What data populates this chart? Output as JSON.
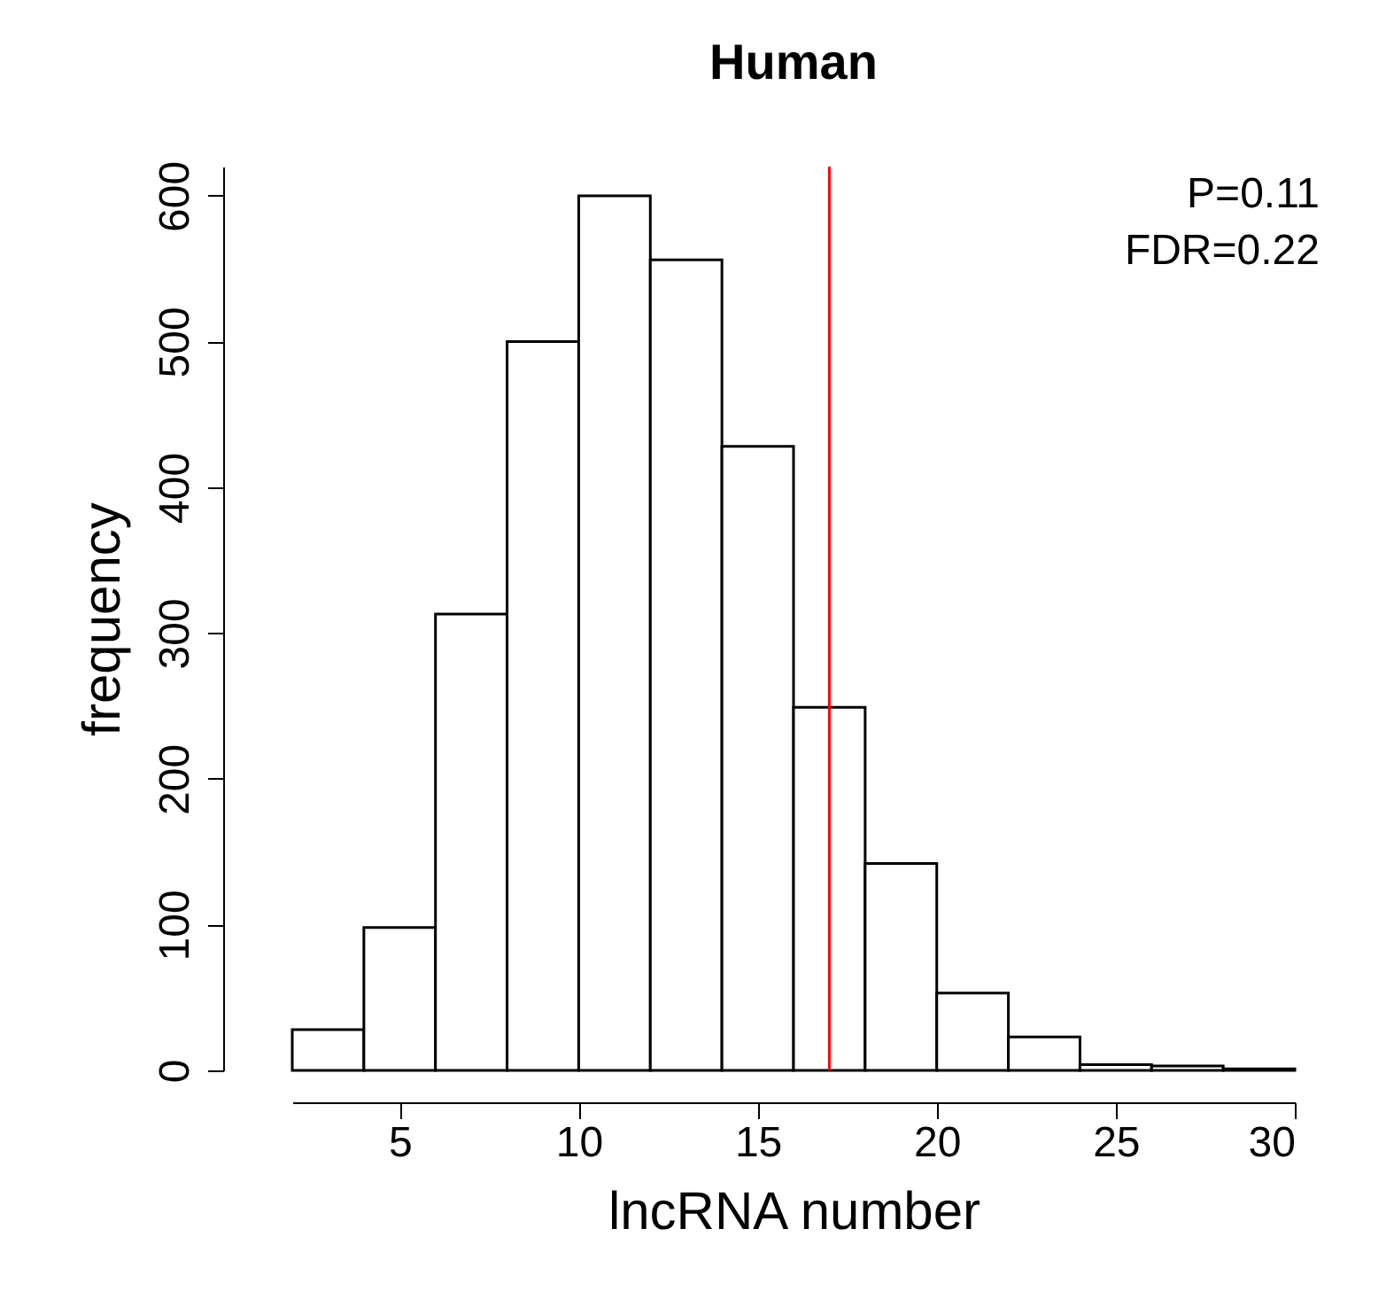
{
  "chart_data": {
    "type": "histogram",
    "title": "Human",
    "xlabel": "lncRNA number",
    "ylabel": "frequency",
    "bins": [
      2,
      4,
      6,
      8,
      10,
      12,
      14,
      16,
      18,
      20,
      22,
      24,
      26,
      28,
      30
    ],
    "values": [
      28,
      98,
      313,
      500,
      600,
      556,
      428,
      249,
      142,
      53,
      23,
      4,
      3,
      1
    ],
    "color": "#ffffff",
    "xlim": [
      2,
      30
    ],
    "xticks": [
      5,
      10,
      15,
      20,
      25,
      30
    ],
    "ylim": [
      0,
      620
    ],
    "yticks": [
      0,
      100,
      200,
      300,
      400,
      500,
      600
    ],
    "ref_lines": [
      {
        "axis": "x",
        "value": 17,
        "color": "#ff0000"
      }
    ],
    "annotations": [
      "P=0.11",
      "FDR=0.22"
    ]
  }
}
